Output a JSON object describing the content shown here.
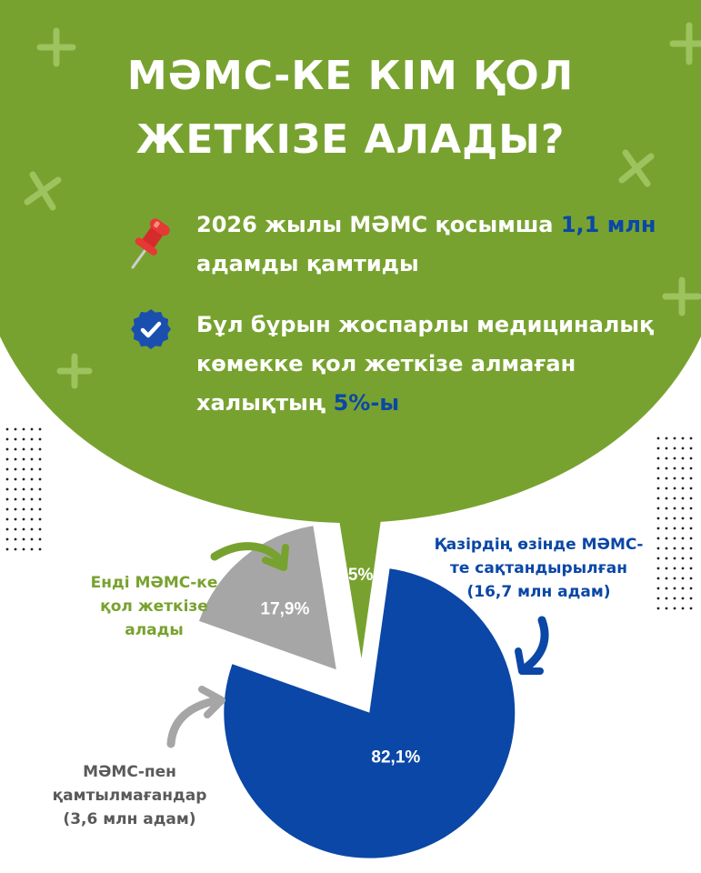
{
  "title": {
    "line1": "МӘМС-КЕ КІМ ҚОЛ",
    "line2": "ЖЕТКІЗЕ АЛАДЫ?"
  },
  "bullets": [
    {
      "icon": "pushpin-icon",
      "parts": [
        {
          "text": "2026 жылы МӘМС қосымша ",
          "highlight": false
        },
        {
          "text": "1,1 млн",
          "highlight": true
        },
        {
          "text": " адамды қамтиды",
          "highlight": false
        }
      ]
    },
    {
      "icon": "check-badge-icon",
      "parts": [
        {
          "text": "Бұл бұрын жоспарлы медициналық көмекке қол жеткізе алмаған халықтың ",
          "highlight": false
        },
        {
          "text": "5%-ы",
          "highlight": true
        }
      ]
    }
  ],
  "colors": {
    "green": "#78a22f",
    "blue": "#0a47a6",
    "gray": "#a6a6a6",
    "plus_marks": "#9cc35e"
  },
  "labels": {
    "green": "Енді МӘМС-ке қол жеткізе алады",
    "blue": "Қазірдің өзінде МӘМС-те сақтандырылған (16,7 млн адам)",
    "gray": "МӘМС-пен қамтылмағандар (3,6 млн адам)"
  },
  "chart_data": {
    "type": "pie",
    "slices": [
      {
        "label": "Қазірдің өзінде МӘМС-те сақтандырылған (16,7 млн адам)",
        "value": 82.1,
        "display": "82,1%",
        "color": "#0a47a6"
      },
      {
        "label": "МӘМС-пен қамтылмағандар (3,6 млн адам)",
        "value": 17.9,
        "display": "17,9%",
        "color": "#a6a6a6"
      },
      {
        "label": "Енді МӘМС-ке қол жеткізе алады",
        "value": 5,
        "display": "5%",
        "color": "#78a22f"
      }
    ],
    "legend": "none"
  }
}
